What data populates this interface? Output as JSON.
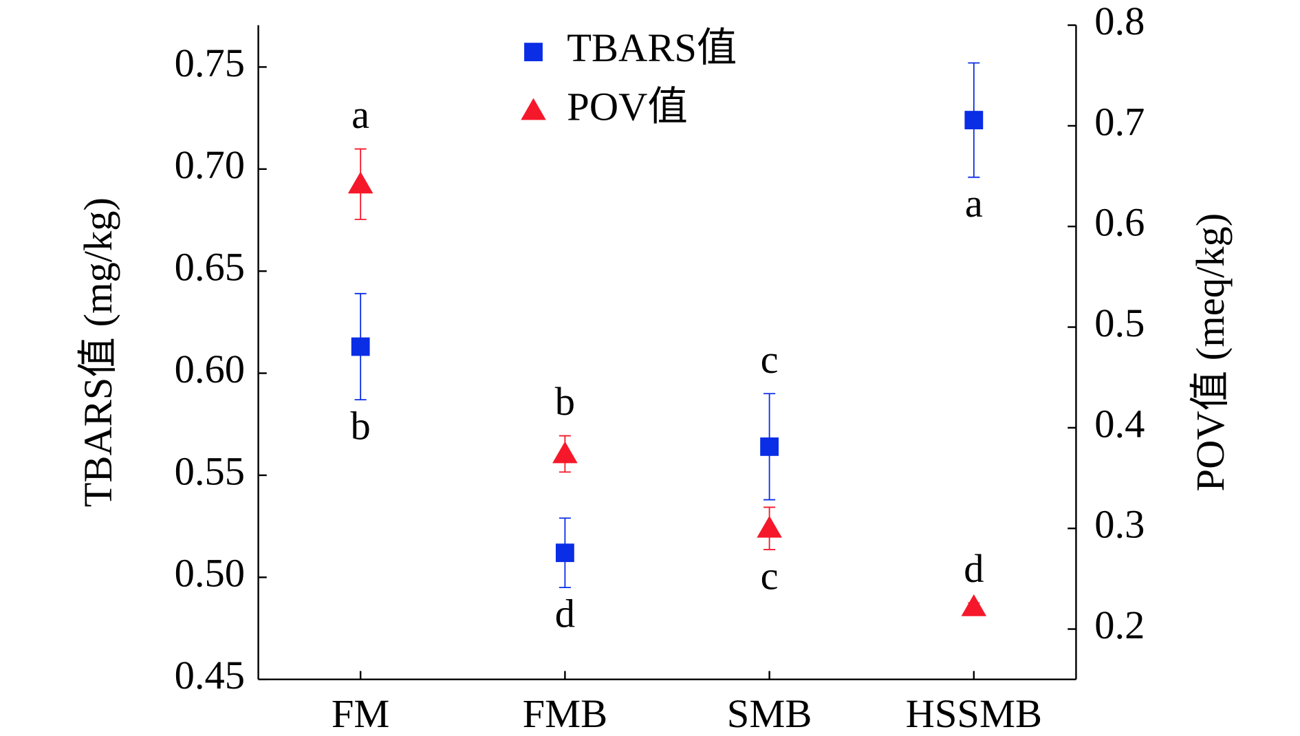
{
  "chart_data": {
    "type": "errorbar",
    "categories": [
      "FM",
      "FMB",
      "SMB",
      "HSSMB"
    ],
    "ylabel": "TBARS值 (mg/kg)",
    "y2label": "POV值 (meq/kg)",
    "ylim": [
      0.45,
      0.7705
    ],
    "yticks": [
      {
        "value": 0.45,
        "label": "0.45"
      },
      {
        "value": 0.5,
        "label": "0.50"
      },
      {
        "value": 0.55,
        "label": "0.55"
      },
      {
        "value": 0.6,
        "label": "0.60"
      },
      {
        "value": 0.65,
        "label": "0.65"
      },
      {
        "value": 0.7,
        "label": "0.70"
      },
      {
        "value": 0.75,
        "label": "0.75"
      }
    ],
    "y2lim": [
      0.15,
      0.8
    ],
    "y2ticks": [
      0.2,
      0.3,
      0.4,
      0.5,
      0.6,
      0.7,
      0.8
    ],
    "legend": "upper center",
    "series": [
      {
        "name": "TBARS值",
        "color": "#0a2de6",
        "marker": "square",
        "axis": "y",
        "values": [
          0.613,
          0.512,
          0.564,
          0.724
        ],
        "errors": [
          0.026,
          0.017,
          0.026,
          0.028
        ],
        "letters": [
          "b",
          "d",
          "c",
          "a"
        ]
      },
      {
        "name": "POV值",
        "color": "#f5182a",
        "marker": "triangle",
        "axis": "y2",
        "values": [
          0.642,
          0.374,
          0.3,
          0.222
        ],
        "errors": [
          0.035,
          0.018,
          0.021,
          0.004
        ],
        "letters": [
          "a",
          "b",
          "c",
          "d"
        ]
      }
    ]
  }
}
